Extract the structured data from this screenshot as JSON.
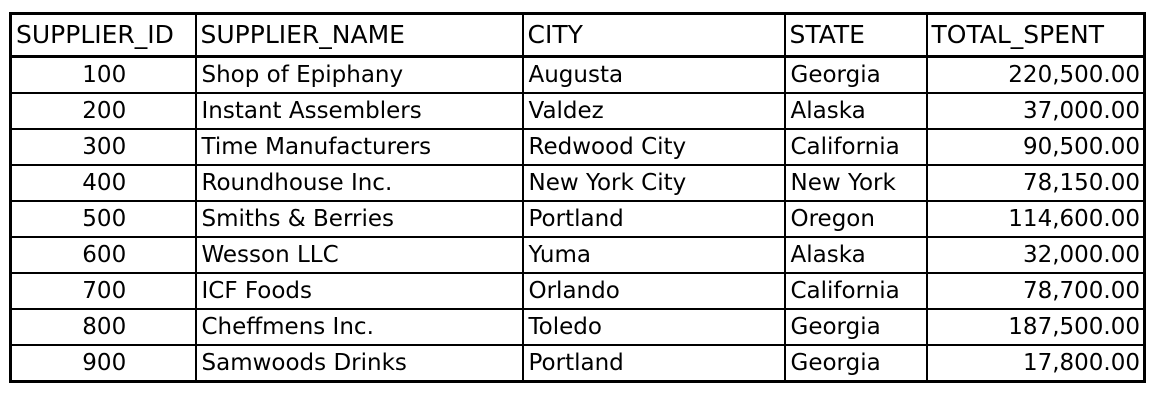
{
  "table": {
    "headers": [
      "SUPPLIER_ID",
      "SUPPLIER_NAME",
      "CITY",
      "STATE",
      "TOTAL_SPENT"
    ],
    "rows": [
      [
        "100",
        "Shop of Epiphany",
        "Augusta",
        "Georgia",
        "220,500.00"
      ],
      [
        "200",
        "Instant Assemblers",
        "Valdez",
        "Alaska",
        "37,000.00"
      ],
      [
        "300",
        "Time Manufacturers",
        "Redwood City",
        "California",
        "90,500.00"
      ],
      [
        "400",
        "Roundhouse Inc.",
        "New York City",
        "New York",
        "78,150.00"
      ],
      [
        "500",
        "Smiths & Berries",
        "Portland",
        "Oregon",
        "114,600.00"
      ],
      [
        "600",
        "Wesson LLC",
        "Yuma",
        "Alaska",
        "32,000.00"
      ],
      [
        "700",
        "ICF Foods",
        "Orlando",
        "California",
        "78,700.00"
      ],
      [
        "800",
        "Cheffmens Inc.",
        "Toledo",
        "Georgia",
        "187,500.00"
      ],
      [
        "900",
        "Samwoods Drinks",
        "Portland",
        "Georgia",
        "17,800.00"
      ]
    ]
  }
}
